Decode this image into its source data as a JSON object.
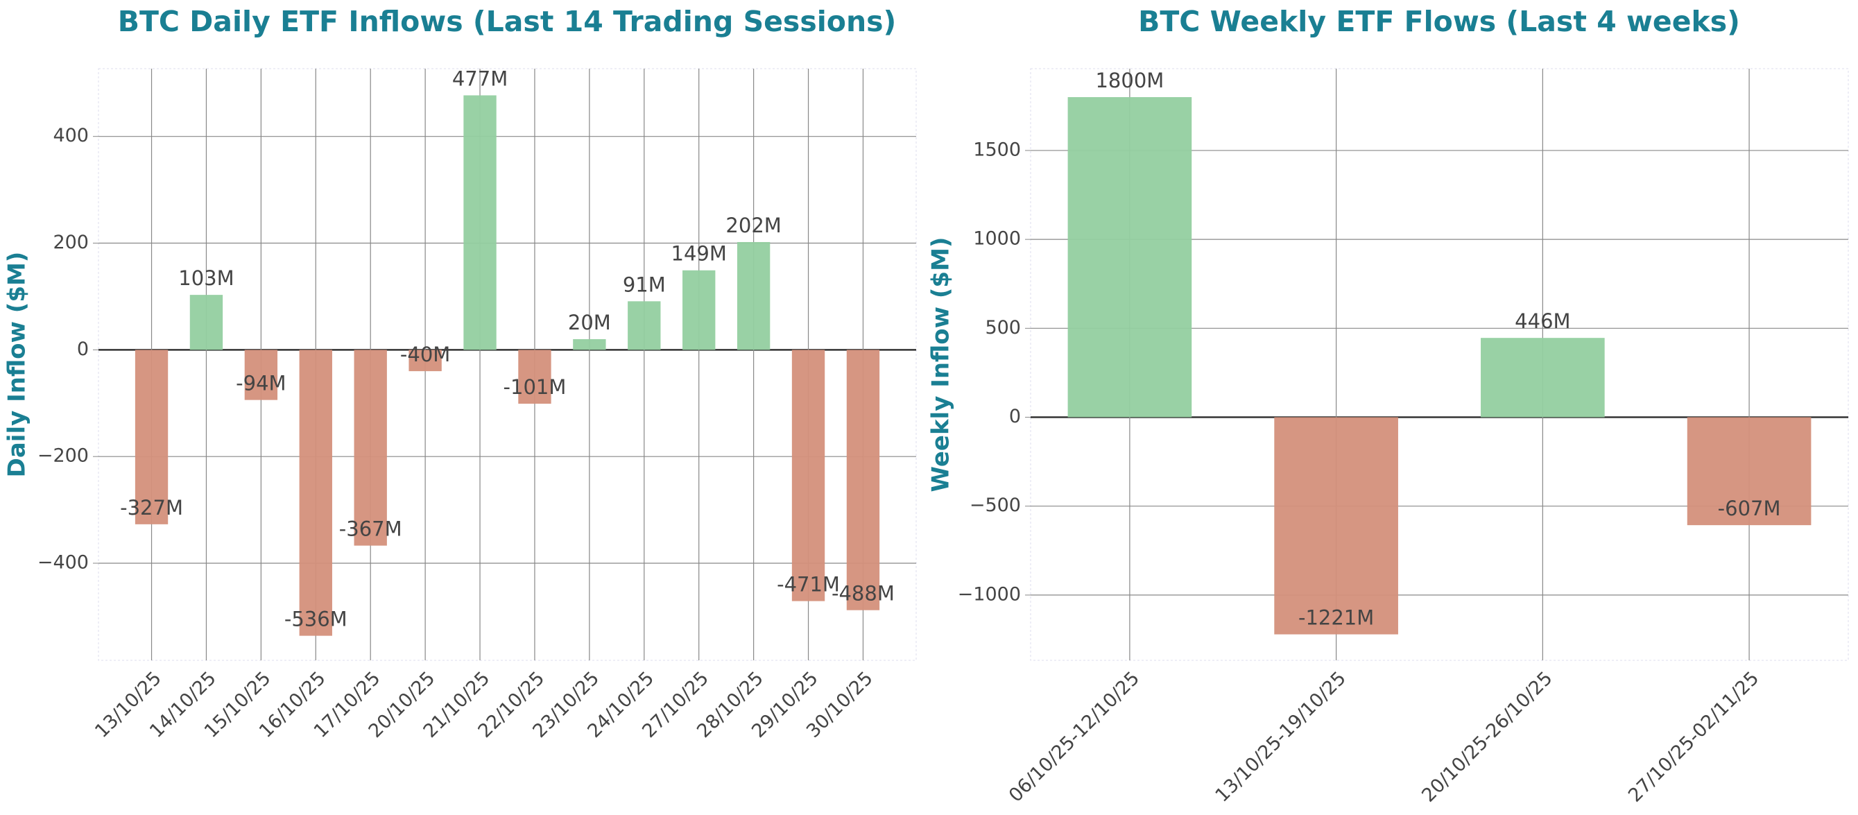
{
  "chart_data": [
    {
      "type": "bar",
      "title": "BTC Daily ETF Inflows (Last 14 Trading Sessions)",
      "y_label": "Daily Inflow ($M)",
      "categories": [
        "13/10/25",
        "14/10/25",
        "15/10/25",
        "16/10/25",
        "17/10/25",
        "20/10/25",
        "21/10/25",
        "22/10/25",
        "23/10/25",
        "24/10/25",
        "27/10/25",
        "28/10/25",
        "29/10/25",
        "30/10/25"
      ],
      "values": [
        -327,
        103,
        -94,
        -536,
        -367,
        -40,
        477,
        -101,
        20,
        91,
        149,
        202,
        -471,
        -488
      ],
      "value_labels": [
        "-327M",
        "103M",
        "-94M",
        "-536M",
        "-367M",
        "-40M",
        "477M",
        "-101M",
        "20M",
        "91M",
        "149M",
        "202M",
        "-471M",
        "-488M"
      ],
      "positive_color": "#93cfa0",
      "negative_color": "#d4907b",
      "ylim": [
        -582,
        527
      ],
      "yticks": [
        {
          "value": -400,
          "label": "−400"
        },
        {
          "value": -200,
          "label": "−200"
        },
        0,
        200,
        400
      ],
      "grid": true
    },
    {
      "type": "bar",
      "title": "BTC Weekly ETF Flows (Last 4 weeks)",
      "y_label": "Weekly Inflow ($M)",
      "categories": [
        "06/10/25-12/10/25",
        "13/10/25-19/10/25",
        "20/10/25-26/10/25",
        "27/10/25-02/11/25"
      ],
      "values": [
        1800,
        -1221,
        446,
        -607
      ],
      "value_labels": [
        "1800M",
        "-1221M",
        "446M",
        "-607M"
      ],
      "positive_color": "#93cfa0",
      "negative_color": "#d4907b",
      "ylim": [
        -1367,
        1960
      ],
      "yticks": [
        {
          "value": -1000,
          "label": "−1000"
        },
        {
          "value": -500,
          "label": "−500"
        },
        0,
        500,
        1000,
        1500
      ],
      "grid": true
    }
  ]
}
